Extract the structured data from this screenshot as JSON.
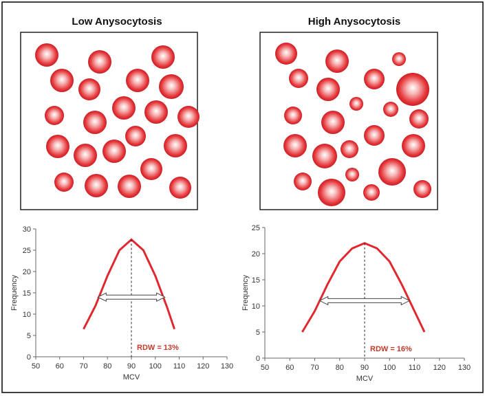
{
  "chart_data": [
    {
      "type": "line",
      "title": "Low Anysocytosis",
      "x_label": "MCV",
      "y_label": "Frequency",
      "annotation": "RDW = 13%",
      "color": "#e0282e",
      "x": [
        70,
        75,
        80,
        85,
        90,
        95,
        100,
        105,
        108
      ],
      "values": [
        6.5,
        12,
        19,
        25,
        27.5,
        25,
        19,
        11.5,
        6.5
      ],
      "reference_x": 90,
      "arrow": {
        "x": [
          76,
          104
        ],
        "y": 14
      },
      "xlim": [
        50,
        130
      ],
      "xticks": [
        50,
        60,
        70,
        80,
        90,
        100,
        110,
        120,
        130
      ],
      "ylim": [
        0,
        30
      ],
      "yticks": [
        0,
        5,
        10,
        15,
        20,
        25,
        30
      ]
    },
    {
      "type": "line",
      "title": "High Anysocytosis",
      "x_label": "MCV",
      "y_label": "Frequency",
      "annotation": "RDW = 16%",
      "color": "#e0282e",
      "x": [
        65,
        70,
        75,
        80,
        85,
        90,
        95,
        100,
        105,
        110,
        114
      ],
      "values": [
        5,
        9,
        14,
        18.5,
        21,
        22,
        21,
        18.5,
        14,
        9,
        5
      ],
      "reference_x": 90,
      "arrow": {
        "x": [
          72,
          108
        ],
        "y": 11
      },
      "xlim": [
        50,
        130
      ],
      "xticks": [
        50,
        60,
        70,
        80,
        90,
        100,
        110,
        120,
        130
      ],
      "ylim": [
        0,
        25
      ],
      "yticks": [
        0,
        5,
        10,
        15,
        20,
        25
      ]
    }
  ]
}
